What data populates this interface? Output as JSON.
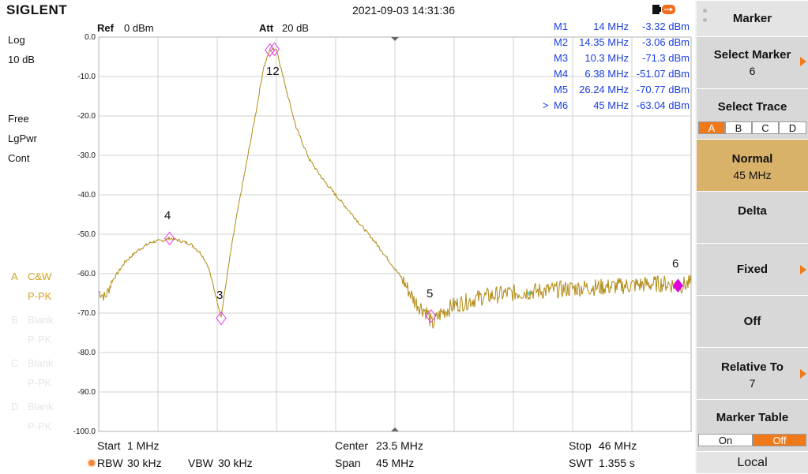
{
  "header": {
    "logo": "SIGLENT",
    "datetime": "2021-09-03 14:31:36"
  },
  "plot_header": {
    "ref_label": "Ref",
    "ref_value": "0 dBm",
    "att_label": "Att",
    "att_value": "20 dB"
  },
  "left_info": {
    "scale_type": "Log",
    "scale_div": "10 dB",
    "trigger": "Free",
    "detector": "LgPwr",
    "sweep_mode": "Cont",
    "traces": [
      {
        "letter": "A",
        "mode": "C&W",
        "detector": "P-PK",
        "active": true
      },
      {
        "letter": "B",
        "mode": "Blank",
        "detector": "P-PK",
        "active": false
      },
      {
        "letter": "C",
        "mode": "Blank",
        "detector": "P-PK",
        "active": false
      },
      {
        "letter": "D",
        "mode": "Blank",
        "detector": "P-PK",
        "active": false
      }
    ]
  },
  "y_axis": {
    "ticks": [
      "0.0",
      "-10.0",
      "-20.0",
      "-30.0",
      "-40.0",
      "-50.0",
      "-60.0",
      "-70.0",
      "-80.0",
      "-90.0",
      "-100.0"
    ]
  },
  "marker_table": [
    {
      "name": "M1",
      "freq": "14 MHz",
      "amp": "-3.32 dBm",
      "selected": false
    },
    {
      "name": "M2",
      "freq": "14.35 MHz",
      "amp": "-3.06 dBm",
      "selected": false
    },
    {
      "name": "M3",
      "freq": "10.3 MHz",
      "amp": "-71.3 dBm",
      "selected": false
    },
    {
      "name": "M4",
      "freq": "6.38 MHz",
      "amp": "-51.07 dBm",
      "selected": false
    },
    {
      "name": "M5",
      "freq": "26.24 MHz",
      "amp": "-70.77 dBm",
      "selected": false
    },
    {
      "name": "M6",
      "freq": "45 MHz",
      "amp": "-63.04 dBm",
      "selected": true,
      "prefix": ">"
    }
  ],
  "marker_labels": [
    "4",
    "12",
    "3",
    "5",
    "6"
  ],
  "chart_data": {
    "type": "line",
    "x_start_mhz": 1,
    "x_stop_mhz": 46,
    "ylim": [
      -100,
      0
    ],
    "series": [
      {
        "x": [
          1,
          1.5,
          2,
          3,
          4,
          5,
          6,
          6.4,
          7,
          8,
          8.8,
          9.3,
          9.7,
          10,
          10.3,
          10.6,
          11,
          11.5,
          12,
          12.5,
          13,
          13.5,
          14,
          14.3,
          14.5,
          15,
          16,
          17,
          18,
          20,
          22,
          24,
          25,
          26,
          26.3,
          27,
          28,
          30,
          32,
          34,
          36,
          38,
          40,
          42,
          44,
          45,
          46
        ],
        "y": [
          -64.5,
          -66,
          -62,
          -57,
          -54,
          -52,
          -51.5,
          -51,
          -51.5,
          -52.5,
          -55,
          -58,
          -63,
          -67,
          -71,
          -64,
          -55,
          -45,
          -36,
          -27,
          -18,
          -8,
          -3.3,
          -3.1,
          -3,
          -10,
          -23,
          -31,
          -36,
          -44,
          -52,
          -61,
          -67,
          -70,
          -73,
          -70,
          -68,
          -66,
          -65,
          -64.5,
          -64,
          -63.5,
          -63.3,
          -62.8,
          -62.5,
          -63,
          -62.5
        ]
      }
    ],
    "markers": [
      {
        "label": "1",
        "x": 14,
        "y": -3.32
      },
      {
        "label": "2",
        "x": 14.35,
        "y": -3.06
      },
      {
        "label": "3",
        "x": 10.3,
        "y": -71.3
      },
      {
        "label": "4",
        "x": 6.38,
        "y": -51.07
      },
      {
        "label": "5",
        "x": 26.24,
        "y": -70.77
      },
      {
        "label": "6",
        "x": 45,
        "y": -63.04,
        "active": true
      }
    ],
    "grid": true,
    "colors": {
      "trace": "#b08a12",
      "marker": "#e040e0",
      "active_marker": "#e000e0",
      "grid": "#d0d0d0"
    }
  },
  "bottom": {
    "start_label": "Start",
    "start_value": "1 MHz",
    "center_label": "Center",
    "center_value": "23.5 MHz",
    "stop_label": "Stop",
    "stop_value": "46 MHz",
    "rbw_label": "RBW",
    "rbw_value": "30 kHz",
    "vbw_label": "VBW",
    "vbw_value": "30 kHz",
    "span_label": "Span",
    "span_value": "45 MHz",
    "swt_label": "SWT",
    "swt_value": "1.355 s"
  },
  "menu": {
    "title": "Marker",
    "select_marker": {
      "label": "Select Marker",
      "value": "6"
    },
    "select_trace": {
      "label": "Select Trace",
      "options": [
        "A",
        "B",
        "C",
        "D"
      ],
      "selected": "A"
    },
    "normal": {
      "label": "Normal",
      "value": "45 MHz"
    },
    "delta": {
      "label": "Delta"
    },
    "fixed": {
      "label": "Fixed"
    },
    "off": {
      "label": "Off"
    },
    "relative_to": {
      "label": "Relative To",
      "value": "7"
    },
    "marker_table": {
      "label": "Marker Table",
      "options": [
        "On",
        "Off"
      ],
      "selected": "Off"
    },
    "local": {
      "label": "Local"
    }
  }
}
